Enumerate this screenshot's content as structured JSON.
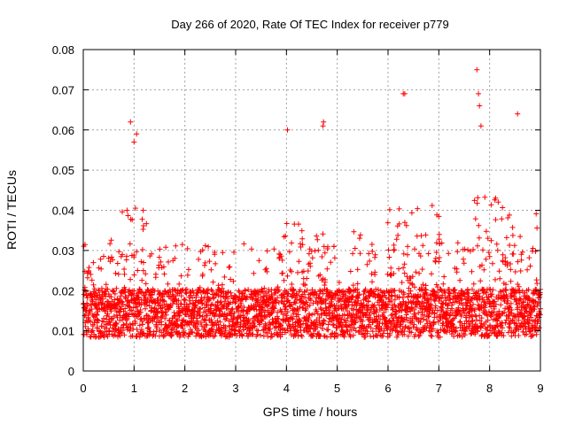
{
  "chart_data": {
    "type": "scatter",
    "title": "Day 266 of 2020, Rate Of TEC Index for receiver p779",
    "xlabel": "GPS time / hours",
    "ylabel": "ROTI / TECUs",
    "xlim": [
      0,
      9
    ],
    "ylim": [
      0,
      0.08
    ],
    "x_ticks": [
      0,
      1,
      2,
      3,
      4,
      5,
      6,
      7,
      8,
      9
    ],
    "x_tick_labels": [
      "0",
      "1",
      "2",
      "3",
      "4",
      "5",
      "6",
      "7",
      "8",
      "9"
    ],
    "y_ticks": [
      0,
      0.01,
      0.02,
      0.03,
      0.04,
      0.05,
      0.06,
      0.07,
      0.08
    ],
    "y_tick_labels": [
      "0",
      "0.01",
      "0.02",
      "0.03",
      "0.04",
      "0.05",
      "0.06",
      "0.07",
      "0.08"
    ],
    "grid": true,
    "marker": "+",
    "color": "#ff0000",
    "sample_interval_hours": 0.0083,
    "baseline_level": 0.015,
    "baseline_spread": 0.006,
    "notable_peaks": [
      {
        "x": 0.93,
        "y": 0.062
      },
      {
        "x": 1.05,
        "y": 0.059
      },
      {
        "x": 1.0,
        "y": 0.057
      },
      {
        "x": 4.02,
        "y": 0.06
      },
      {
        "x": 4.73,
        "y": 0.062
      },
      {
        "x": 4.72,
        "y": 0.061
      },
      {
        "x": 6.33,
        "y": 0.069
      },
      {
        "x": 6.3,
        "y": 0.069
      },
      {
        "x": 7.75,
        "y": 0.075
      },
      {
        "x": 7.78,
        "y": 0.069
      },
      {
        "x": 7.8,
        "y": 0.066
      },
      {
        "x": 7.83,
        "y": 0.061
      },
      {
        "x": 8.55,
        "y": 0.064
      }
    ],
    "elevated_intervals": [
      {
        "x_start": 0.0,
        "x_end": 0.5,
        "level": 0.028
      },
      {
        "x_start": 0.5,
        "x_end": 1.25,
        "level": 0.04
      },
      {
        "x_start": 2.3,
        "x_end": 2.8,
        "level": 0.03
      },
      {
        "x_start": 3.8,
        "x_end": 4.9,
        "level": 0.036
      },
      {
        "x_start": 5.2,
        "x_end": 5.5,
        "level": 0.035
      },
      {
        "x_start": 6.0,
        "x_end": 7.1,
        "level": 0.04
      },
      {
        "x_start": 7.3,
        "x_end": 7.5,
        "level": 0.04
      },
      {
        "x_start": 7.6,
        "x_end": 9.0,
        "level": 0.042
      }
    ]
  }
}
